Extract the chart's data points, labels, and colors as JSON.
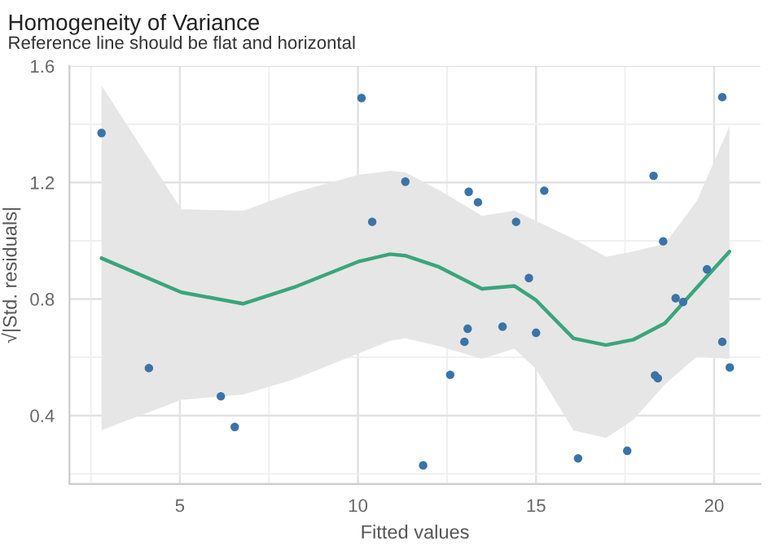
{
  "chart_data": {
    "type": "scatter",
    "title": "Homogeneity of Variance",
    "subtitle": "Reference line should be flat and horizontal",
    "xlabel": "Fitted values",
    "ylabel": "√|Std. residuals|",
    "xlim": [
      1.9,
      21.3
    ],
    "ylim": [
      0.165,
      1.6
    ],
    "xticks": [
      5,
      10,
      15,
      20
    ],
    "yticks": [
      0.4,
      0.8,
      1.2,
      1.6
    ],
    "grid": true,
    "legend": false,
    "series": [
      {
        "marker": "circle",
        "color": "#3b73a8",
        "x": [
          2.8,
          10.1,
          10.4,
          4.13,
          6.15,
          6.54,
          11.33,
          13.11,
          13.37,
          15.23,
          14.44,
          14.8,
          13.08,
          12.99,
          14.06,
          15.0,
          12.59,
          11.83,
          16.18,
          17.56,
          18.3,
          18.57,
          18.34,
          18.42,
          18.92,
          19.13,
          19.8,
          20.23,
          20.23,
          20.44
        ],
        "values": [
          1.37,
          1.49,
          1.065,
          0.563,
          0.466,
          0.361,
          1.203,
          1.168,
          1.132,
          1.172,
          1.065,
          0.872,
          0.698,
          0.653,
          0.705,
          0.684,
          0.54,
          0.229,
          0.253,
          0.279,
          1.223,
          0.998,
          0.538,
          0.528,
          0.803,
          0.79,
          0.902,
          1.493,
          0.653,
          0.565
        ]
      },
      {
        "type": "line",
        "color": "#3aa57c",
        "x": [
          2.8,
          5.04,
          6.77,
          8.2,
          10.0,
          10.9,
          11.33,
          12.28,
          13.48,
          14.39,
          15.0,
          16.05,
          16.96,
          17.72,
          18.62,
          19.52,
          20.43
        ],
        "values": [
          0.94,
          0.823,
          0.784,
          0.84,
          0.928,
          0.954,
          0.949,
          0.91,
          0.835,
          0.845,
          0.796,
          0.665,
          0.642,
          0.66,
          0.717,
          0.84,
          0.963
        ],
        "lower": [
          0.35,
          0.454,
          0.472,
          0.524,
          0.612,
          0.656,
          0.665,
          0.638,
          0.595,
          0.63,
          0.56,
          0.349,
          0.323,
          0.384,
          0.507,
          0.603,
          0.595
        ],
        "upper": [
          1.533,
          1.108,
          1.103,
          1.165,
          1.226,
          1.24,
          1.235,
          1.174,
          1.086,
          1.103,
          1.068,
          1.007,
          0.945,
          0.963,
          0.99,
          1.138,
          1.393
        ]
      }
    ]
  }
}
